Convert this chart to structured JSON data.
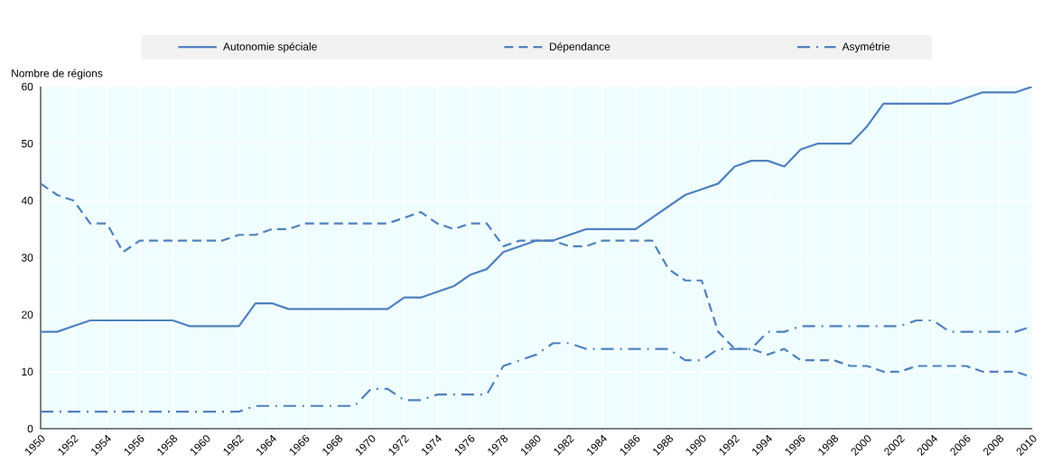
{
  "chart_data": {
    "type": "line",
    "ylabel": "Nombre de régions",
    "x": [
      1950,
      1951,
      1952,
      1953,
      1954,
      1955,
      1956,
      1957,
      1958,
      1959,
      1960,
      1961,
      1962,
      1963,
      1964,
      1965,
      1966,
      1967,
      1968,
      1969,
      1970,
      1971,
      1972,
      1973,
      1974,
      1975,
      1976,
      1977,
      1978,
      1979,
      1980,
      1981,
      1982,
      1983,
      1984,
      1985,
      1986,
      1987,
      1988,
      1989,
      1990,
      1991,
      1992,
      1993,
      1994,
      1995,
      1996,
      1997,
      1998,
      1999,
      2000,
      2001,
      2002,
      2003,
      2004,
      2005,
      2006,
      2007,
      2008,
      2009,
      2010
    ],
    "series": [
      {
        "name": "Autonomie spéciale",
        "color": "#4f81bd",
        "line_style": "solid",
        "values": [
          17,
          17,
          18,
          19,
          19,
          19,
          19,
          19,
          19,
          18,
          18,
          18,
          18,
          22,
          22,
          21,
          21,
          21,
          21,
          21,
          21,
          21,
          23,
          23,
          24,
          25,
          27,
          28,
          31,
          32,
          33,
          33,
          34,
          35,
          35,
          35,
          35,
          37,
          39,
          41,
          42,
          43,
          46,
          47,
          47,
          46,
          49,
          50,
          50,
          50,
          53,
          57,
          57,
          57,
          57,
          57,
          58,
          59,
          59,
          59,
          60
        ]
      },
      {
        "name": "Dépendance",
        "color": "#4f81bd",
        "line_style": "dashed",
        "values": [
          43,
          41,
          40,
          36,
          36,
          31,
          33,
          33,
          33,
          33,
          33,
          33,
          34,
          34,
          35,
          35,
          36,
          36,
          36,
          36,
          36,
          36,
          37,
          38,
          36,
          35,
          36,
          36,
          32,
          33,
          33,
          33,
          32,
          32,
          33,
          33,
          33,
          33,
          28,
          26,
          26,
          17,
          14,
          14,
          13,
          14,
          12,
          12,
          12,
          11,
          11,
          10,
          10,
          11,
          11,
          11,
          11,
          10,
          10,
          10,
          9
        ]
      },
      {
        "name": "Asymétrie",
        "color": "#4f81bd",
        "line_style": "dashdot",
        "values": [
          3,
          3,
          3,
          3,
          3,
          3,
          3,
          3,
          3,
          3,
          3,
          3,
          3,
          4,
          4,
          4,
          4,
          4,
          4,
          4,
          7,
          7,
          5,
          5,
          6,
          6,
          6,
          6,
          11,
          12,
          13,
          15,
          15,
          14,
          14,
          14,
          14,
          14,
          14,
          12,
          12,
          14,
          14,
          14,
          17,
          17,
          18,
          18,
          18,
          18,
          18,
          18,
          18,
          19,
          19,
          17,
          17,
          17,
          17,
          17,
          18
        ]
      }
    ],
    "xlim": [
      1950,
      2010
    ],
    "ylim": [
      0,
      60
    ],
    "xticks": [
      1950,
      1952,
      1954,
      1956,
      1958,
      1960,
      1962,
      1964,
      1966,
      1968,
      1970,
      1972,
      1974,
      1976,
      1978,
      1980,
      1982,
      1984,
      1986,
      1988,
      1990,
      1992,
      1994,
      1996,
      1998,
      2000,
      2002,
      2004,
      2006,
      2008,
      2010
    ],
    "yticks": [
      0,
      10,
      20,
      30,
      40,
      50,
      60
    ],
    "grid": true,
    "legend": "top",
    "marker": "none"
  }
}
